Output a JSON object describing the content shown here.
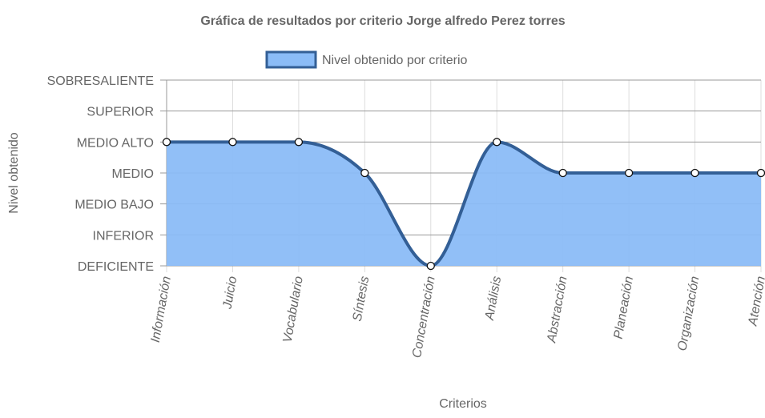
{
  "chart_data": {
    "type": "area",
    "title": "Gráfica de resultados por criterio Jorge alfredo Perez torres",
    "xlabel": "Criterios",
    "ylabel": "Nivel obtenido",
    "categories": [
      "Información",
      "Juicio",
      "Vocabulario",
      "Síntesis",
      "Concentración",
      "Análisis",
      "Abstracción",
      "Planeación",
      "Organización",
      "Atención"
    ],
    "y_levels": [
      "DEFICIENTE",
      "INFERIOR",
      "MEDIO BAJO",
      "MEDIO",
      "MEDIO ALTO",
      "SUPERIOR",
      "SOBRESALIENTE"
    ],
    "ylim": [
      0,
      6
    ],
    "series": [
      {
        "name": "Nivel obtenido por criterio",
        "values": [
          4,
          4,
          4,
          3,
          0,
          4,
          3,
          3,
          3,
          3
        ],
        "level_labels": [
          "MEDIO ALTO",
          "MEDIO ALTO",
          "MEDIO ALTO",
          "MEDIO",
          "DEFICIENTE",
          "MEDIO ALTO",
          "MEDIO",
          "MEDIO",
          "MEDIO",
          "MEDIO"
        ]
      }
    ],
    "grid": true,
    "legend": "top-center",
    "colors": {
      "fill": "#8bbcf7",
      "line": "#335f96",
      "grid": "#dddddd",
      "grid_major": "#999999",
      "text": "#666666",
      "point_fill": "#ffffff"
    }
  }
}
